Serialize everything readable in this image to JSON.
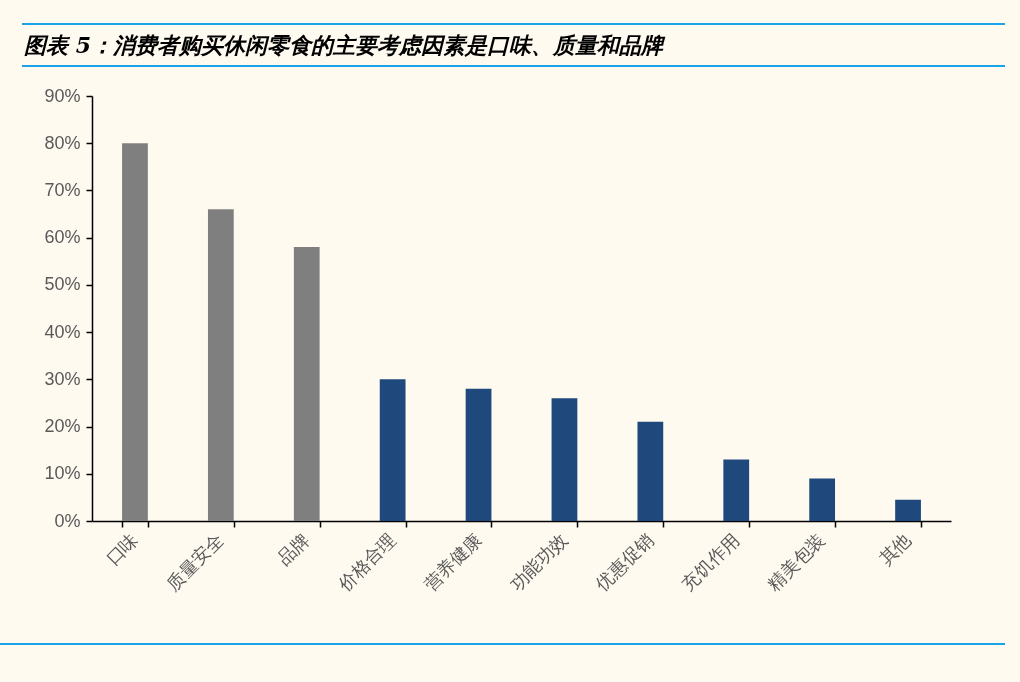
{
  "chart_data": {
    "type": "bar",
    "title": "图表 5：消费者购买休闲零食的主要考虑因素是口味、质量和品牌",
    "categories": [
      "口味",
      "质量安全",
      "品牌",
      "价格合理",
      "营养健康",
      "功能功效",
      "优惠促销",
      "充饥作用",
      "精美包装",
      "其他"
    ],
    "values": [
      80,
      66,
      58,
      30,
      28,
      26,
      21,
      13,
      9,
      4.5
    ],
    "colors": [
      "#7f7f7f",
      "#7f7f7f",
      "#7f7f7f",
      "#1f497d",
      "#1f497d",
      "#1f497d",
      "#1f497d",
      "#1f497d",
      "#1f497d",
      "#1f497d"
    ],
    "ylim": [
      0,
      90
    ],
    "yticks": [
      {
        "value": 0,
        "label": "0%"
      },
      {
        "value": 10,
        "label": "10%"
      },
      {
        "value": 20,
        "label": "20%"
      },
      {
        "value": 30,
        "label": "30%"
      },
      {
        "value": 40,
        "label": "40%"
      },
      {
        "value": 50,
        "label": "50%"
      },
      {
        "value": 60,
        "label": "60%"
      },
      {
        "value": 70,
        "label": "70%"
      },
      {
        "value": 80,
        "label": "80%"
      },
      {
        "value": 90,
        "label": "90%"
      }
    ],
    "grid": false,
    "legend": false
  }
}
